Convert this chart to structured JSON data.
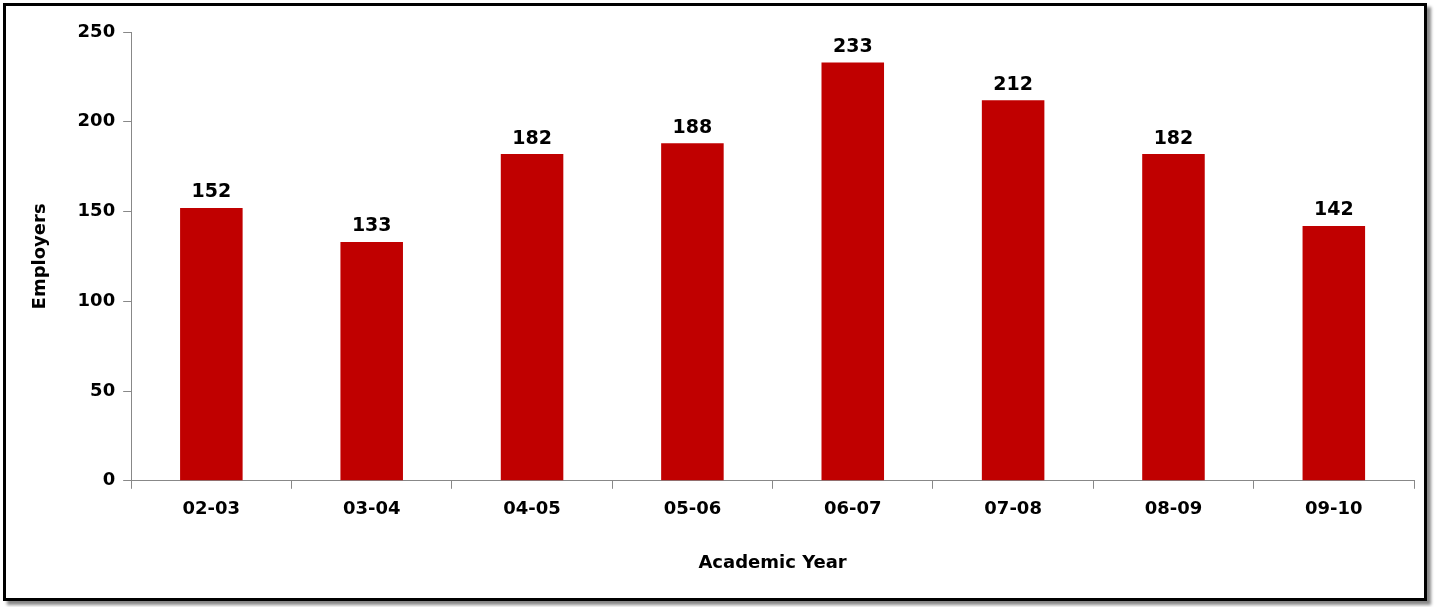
{
  "chart_data": {
    "type": "bar",
    "xlabel": "Academic Year",
    "ylabel": "Employers",
    "categories": [
      "02-03",
      "03-04",
      "04-05",
      "05-06",
      "06-07",
      "07-08",
      "08-09",
      "09-10"
    ],
    "values": [
      152,
      133,
      182,
      188,
      233,
      212,
      182,
      142
    ],
    "color": "#c00000",
    "ylim": [
      0,
      250
    ],
    "yticks": [
      0,
      50,
      100,
      150,
      200,
      250
    ],
    "grid": false,
    "legend": false,
    "data_labels": true
  }
}
